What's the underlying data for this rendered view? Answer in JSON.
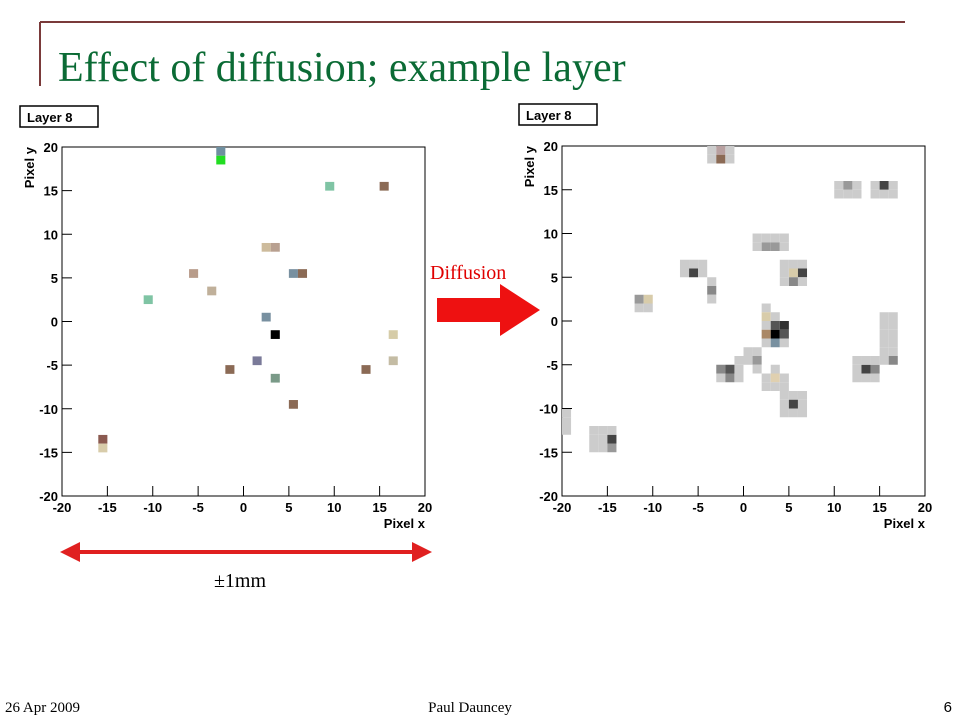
{
  "slide": {
    "title": "Effect of diffusion; example layer",
    "arrow_label": "Diffusion",
    "scale_label": "±1mm",
    "date": "26 Apr 2009",
    "author": "Paul Dauncey",
    "page": "6"
  },
  "chart_data": [
    {
      "type": "pixelmap",
      "title": "Layer 8",
      "x_label": "Pixel x",
      "y_label": "Pixel y",
      "xlim": [
        -20,
        20
      ],
      "ylim": [
        -20,
        20
      ],
      "xticks": [
        -20,
        -15,
        -10,
        -5,
        0,
        5,
        10,
        15,
        20
      ],
      "yticks": [
        -20,
        -15,
        -10,
        -5,
        0,
        5,
        10,
        15,
        20
      ],
      "x": [
        -2.5,
        -2.5,
        9.5,
        15.5,
        2.5,
        3.5,
        5.5,
        6.5,
        -5.5,
        -3.5,
        -10.5,
        2.5,
        3.5,
        16.5,
        1.5,
        -1.5,
        3.5,
        13.5,
        16.5,
        5.5,
        -15.5,
        -15.5
      ],
      "y": [
        19.5,
        18.5,
        15.5,
        15.5,
        8.5,
        8.5,
        5.5,
        5.5,
        5.5,
        3.5,
        2.5,
        0.5,
        -1.5,
        -1.5,
        -4.5,
        -5.5,
        -6.5,
        -5.5,
        -4.5,
        -9.5,
        -13.5,
        -14.5
      ],
      "colors": [
        "#6f8fa0",
        "#22dd22",
        "#7fc4a4",
        "#8b6a55",
        "#cdbb9c",
        "#b8a090",
        "#7890a0",
        "#8b6a55",
        "#b89c8a",
        "#c0b09a",
        "#7fc4a4",
        "#7890a0",
        "#000000",
        "#d6cca8",
        "#7a7a99",
        "#8b6a55",
        "#7a9a88",
        "#8b6a55",
        "#c4bca4",
        "#8b6a55",
        "#8b5a50",
        "#d8ccaa"
      ]
    },
    {
      "type": "pixelmap",
      "title": "Layer 8",
      "x_label": "Pixel x",
      "y_label": "Pixel y",
      "xlim": [
        -20,
        20
      ],
      "ylim": [
        -20,
        20
      ],
      "xticks": [
        -20,
        -15,
        -10,
        -5,
        0,
        5,
        10,
        15,
        20
      ],
      "yticks": [
        -20,
        -15,
        -10,
        -5,
        0,
        5,
        10,
        15,
        20
      ],
      "x": [
        -3.5,
        -2.5,
        -1.5,
        -3.5,
        -2.5,
        -1.5,
        10.5,
        11.5,
        12.5,
        10.5,
        11.5,
        12.5,
        14.5,
        15.5,
        16.5,
        14.5,
        15.5,
        16.5,
        1.5,
        2.5,
        3.5,
        4.5,
        1.5,
        2.5,
        3.5,
        4.5,
        -6.5,
        -5.5,
        -4.5,
        -6.5,
        -5.5,
        -4.5,
        -3.5,
        -3.5,
        -3.5,
        -11.5,
        -10.5,
        -11.5,
        -10.5,
        4.5,
        5.5,
        6.5,
        4.5,
        5.5,
        6.5,
        4.5,
        5.5,
        6.5,
        2.5,
        2.5,
        3.5,
        2.5,
        3.5,
        4.5,
        2.5,
        3.5,
        4.5,
        2.5,
        3.5,
        4.5,
        -0.5,
        0.5,
        1.5,
        0.5,
        1.5,
        1.5,
        -0.5,
        -2.5,
        -1.5,
        -2.5,
        -1.5,
        -0.5,
        2.5,
        3.5,
        4.5,
        2.5,
        3.5,
        4.5,
        3.5,
        4.5,
        5.5,
        6.5,
        4.5,
        5.5,
        6.5,
        4.5,
        5.5,
        6.5,
        12.5,
        13.5,
        14.5,
        12.5,
        13.5,
        14.5,
        12.5,
        13.5,
        14.5,
        15.5,
        16.5,
        15.5,
        16.5,
        15.5,
        16.5,
        15.5,
        16.5,
        15.5,
        16.5,
        15.5,
        16.5,
        -16.5,
        -15.5,
        -14.5,
        -16.5,
        -15.5,
        -14.5,
        -16.5,
        -15.5,
        -14.5,
        -19.5,
        -19.5,
        -19.5
      ],
      "y": [
        19.5,
        19.5,
        19.5,
        18.5,
        18.5,
        18.5,
        15.5,
        15.5,
        15.5,
        14.5,
        14.5,
        14.5,
        15.5,
        15.5,
        15.5,
        14.5,
        14.5,
        14.5,
        8.5,
        8.5,
        8.5,
        8.5,
        9.5,
        9.5,
        9.5,
        9.5,
        6.5,
        5.5,
        5.5,
        5.5,
        6.5,
        6.5,
        4.5,
        3.5,
        2.5,
        2.5,
        2.5,
        1.5,
        1.5,
        6.5,
        5.5,
        5.5,
        5.5,
        4.5,
        4.5,
        4.5,
        6.5,
        6.5,
        1.5,
        0.5,
        0.5,
        -0.5,
        -0.5,
        -0.5,
        -1.5,
        -1.5,
        -1.5,
        -2.5,
        -2.5,
        -2.5,
        -4.5,
        -4.5,
        -4.5,
        -3.5,
        -3.5,
        -5.5,
        -5.5,
        -5.5,
        -5.5,
        -6.5,
        -6.5,
        -6.5,
        -6.5,
        -6.5,
        -6.5,
        -7.5,
        -7.5,
        -7.5,
        -5.5,
        -8.5,
        -8.5,
        -8.5,
        -9.5,
        -9.5,
        -9.5,
        -10.5,
        -10.5,
        -10.5,
        -5.5,
        -5.5,
        -5.5,
        -6.5,
        -6.5,
        -6.5,
        -4.5,
        -4.5,
        -4.5,
        0.5,
        0.5,
        -0.5,
        -0.5,
        -1.5,
        -1.5,
        -2.5,
        -2.5,
        -3.5,
        -3.5,
        -4.5,
        -4.5,
        -13.5,
        -13.5,
        -13.5,
        -14.5,
        -14.5,
        -14.5,
        -12.5,
        -12.5,
        -12.5,
        -10.5,
        -11.5,
        -12.5
      ],
      "colors": [
        "#cccccc",
        "#b8a0a0",
        "#cccccc",
        "#cccccc",
        "#8b6a55",
        "#cccccc",
        "#cccccc",
        "#999999",
        "#cccccc",
        "#cccccc",
        "#cccccc",
        "#cccccc",
        "#cccccc",
        "#444444",
        "#cccccc",
        "#cccccc",
        "#cccccc",
        "#cccccc",
        "#cccccc",
        "#999999",
        "#999999",
        "#cccccc",
        "#cccccc",
        "#cccccc",
        "#cccccc",
        "#cccccc",
        "#cccccc",
        "#444444",
        "#cccccc",
        "#cccccc",
        "#cccccc",
        "#cccccc",
        "#cccccc",
        "#888888",
        "#cccccc",
        "#999999",
        "#d8ccaa",
        "#cccccc",
        "#cccccc",
        "#cccccc",
        "#d8ccaa",
        "#444444",
        "#cccccc",
        "#888888",
        "#cccccc",
        "#cccccc",
        "#cccccc",
        "#cccccc",
        "#cccccc",
        "#d8ccaa",
        "#cccccc",
        "#cccccc",
        "#555555",
        "#333333",
        "#aa8866",
        "#000000",
        "#555555",
        "#cccccc",
        "#7890a0",
        "#cccccc",
        "#cccccc",
        "#cccccc",
        "#999999",
        "#cccccc",
        "#cccccc",
        "#cccccc",
        "#cccccc",
        "#888888",
        "#555555",
        "#cccccc",
        "#888888",
        "#cccccc",
        "#cccccc",
        "#e0d0b0",
        "#cccccc",
        "#cccccc",
        "#cccccc",
        "#cccccc",
        "#cccccc",
        "#cccccc",
        "#cccccc",
        "#cccccc",
        "#cccccc",
        "#444444",
        "#cccccc",
        "#cccccc",
        "#cccccc",
        "#cccccc",
        "#cccccc",
        "#444444",
        "#888888",
        "#cccccc",
        "#cccccc",
        "#cccccc",
        "#cccccc",
        "#cccccc",
        "#cccccc",
        "#cccccc",
        "#cccccc",
        "#cccccc",
        "#cccccc",
        "#cccccc",
        "#cccccc",
        "#cccccc",
        "#cccccc",
        "#cccccc",
        "#cccccc",
        "#cccccc",
        "#888888",
        "#cccccc",
        "#cccccc",
        "#444444",
        "#cccccc",
        "#cccccc",
        "#999999",
        "#cccccc",
        "#cccccc",
        "#cccccc",
        "#cccccc",
        "#cccccc",
        "#cccccc",
        "#cccccc"
      ]
    }
  ]
}
